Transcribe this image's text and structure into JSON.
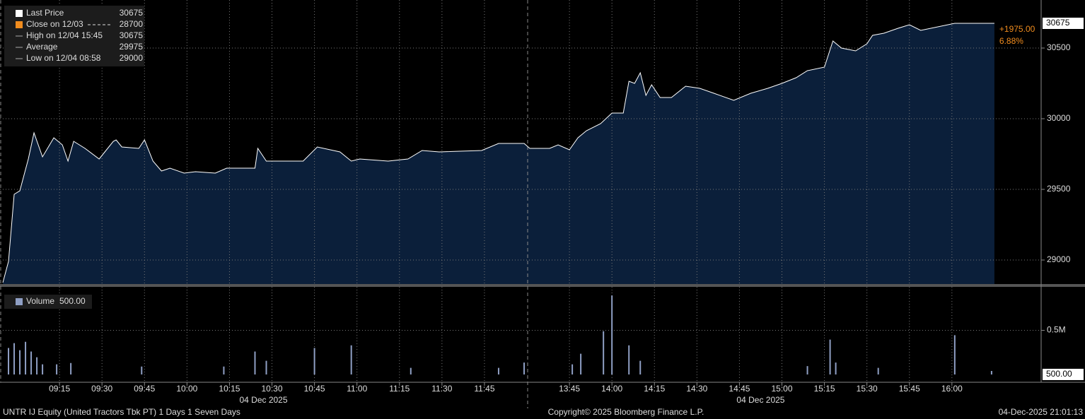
{
  "chart_data": [
    {
      "type": "area",
      "color": "#0b1f3a",
      "line_color": "#ffffff",
      "x": [
        535,
        537,
        539,
        541,
        544,
        546,
        549,
        553,
        556,
        558,
        560,
        564,
        569,
        571,
        574,
        575,
        577,
        583,
        585,
        588,
        591,
        594,
        599,
        603,
        610,
        614,
        624,
        625,
        628,
        641,
        646,
        654,
        658,
        661,
        671,
        678,
        683,
        689,
        704,
        710,
        719,
        811,
        818,
        821,
        825,
        828,
        831,
        836,
        840,
        844,
        846,
        848,
        850,
        852,
        854,
        857,
        861,
        866,
        871,
        876,
        883,
        889,
        895,
        900,
        905,
        909,
        915,
        918,
        921,
        926,
        930,
        932,
        936,
        941,
        945,
        949,
        961,
        975
      ],
      "values": [
        28840,
        28990,
        29465,
        29490,
        29715,
        29900,
        29730,
        29865,
        29815,
        29700,
        29840,
        29790,
        29715,
        29765,
        29840,
        29850,
        29800,
        29790,
        29850,
        29700,
        29630,
        29650,
        29615,
        29625,
        29615,
        29650,
        29650,
        29790,
        29700,
        29700,
        29800,
        29765,
        29700,
        29715,
        29700,
        29715,
        29775,
        29765,
        29775,
        29825,
        29825,
        29790,
        29790,
        29815,
        29780,
        29865,
        29915,
        29965,
        30040,
        30040,
        30265,
        30250,
        30325,
        30165,
        30240,
        30150,
        30150,
        30230,
        30215,
        30180,
        30130,
        30180,
        30215,
        30250,
        30290,
        30340,
        30365,
        30550,
        30500,
        30480,
        30530,
        30590,
        30605,
        30640,
        30665,
        30625,
        30675,
        30675
      ],
      "xlim": [
        534,
        991.5
      ],
      "xbreak": [
        720,
        810
      ],
      "xticks": [
        {
          "value": 555,
          "label": "09:15"
        },
        {
          "value": 570,
          "label": "09:30"
        },
        {
          "value": 585,
          "label": "09:45"
        },
        {
          "value": 600,
          "label": "10:00"
        },
        {
          "value": 615,
          "label": "10:15"
        },
        {
          "value": 630,
          "label": "10:30"
        },
        {
          "value": 645,
          "label": "10:45"
        },
        {
          "value": 660,
          "label": "11:00"
        },
        {
          "value": 675,
          "label": "11:15"
        },
        {
          "value": 690,
          "label": "11:30"
        },
        {
          "value": 705,
          "label": "11:45"
        },
        {
          "value": 825,
          "label": "13:45"
        },
        {
          "value": 840,
          "label": "14:00"
        },
        {
          "value": 855,
          "label": "14:15"
        },
        {
          "value": 870,
          "label": "14:30"
        },
        {
          "value": 885,
          "label": "14:45"
        },
        {
          "value": 900,
          "label": "15:00"
        },
        {
          "value": 915,
          "label": "15:15"
        },
        {
          "value": 930,
          "label": "15:30"
        },
        {
          "value": 945,
          "label": "15:45"
        },
        {
          "value": 960,
          "label": "16:00"
        }
      ],
      "date_labels": [
        "04 Dec 2025",
        "04 Dec 2025"
      ],
      "ylim": [
        28830,
        30840
      ],
      "yticks": [
        29000,
        29500,
        30000,
        30500
      ],
      "grid": true,
      "legend": [
        {
          "name": "Last Price",
          "value": 30675,
          "color": "#ffffff"
        },
        {
          "name": "Close on 12/03",
          "value": 28700,
          "color": "#f08c1e"
        },
        {
          "name": "High on 12/04 15:45",
          "value": 30675,
          "color": "#aaaaaa"
        },
        {
          "name": "Average",
          "value": 29975,
          "color": "#aaaaaa"
        },
        {
          "name": "Low on 12/04 08:58",
          "value": 29000,
          "color": "#aaaaaa"
        }
      ],
      "change": "+1975.00",
      "change_pct": "6.88%"
    },
    {
      "type": "bar",
      "color": "#8f9fc4",
      "name": "Volume",
      "last": {
        "value": 500,
        "label": "500.00"
      },
      "x": [
        537,
        539,
        541,
        543,
        545,
        547,
        549,
        554,
        559,
        584,
        613,
        624,
        628,
        645,
        658,
        679,
        710,
        719,
        826,
        829,
        837,
        840,
        846,
        850,
        909,
        917,
        919,
        934,
        961,
        974
      ],
      "values": [
        300000,
        355000,
        275000,
        370000,
        260000,
        195000,
        115000,
        115000,
        130000,
        90000,
        90000,
        260000,
        155000,
        300000,
        330000,
        75000,
        75000,
        135000,
        115000,
        235000,
        490000,
        895000,
        330000,
        155000,
        95000,
        395000,
        135000,
        75000,
        445000,
        40000
      ],
      "ylim": [
        -88000,
        992000
      ],
      "yticks": [
        {
          "value": 500000,
          "label": "0.5M"
        }
      ]
    }
  ],
  "footer": {
    "left": "UNTR IJ Equity (United Tractors Tbk PT) 1 Days 1 Seven Days",
    "center": "Copyright© 2025 Bloomberg Finance L.P.",
    "right": "04-Dec-2025 21:01:13"
  }
}
